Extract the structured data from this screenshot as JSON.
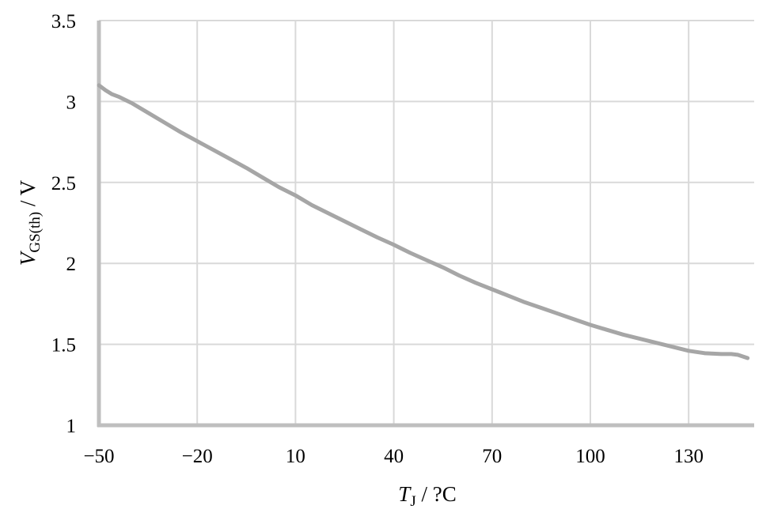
{
  "chart_data": {
    "type": "line",
    "x_axis": {
      "min": -50,
      "max": 150,
      "ticks": [
        -50,
        -20,
        10,
        40,
        70,
        100,
        130
      ],
      "tick_labels": [
        "−50",
        "−20",
        "10",
        "40",
        "70",
        "100",
        "130"
      ],
      "label_var": "T",
      "label_sub": "J",
      "label_rest": " / ?C"
    },
    "y_axis": {
      "min": 1,
      "max": 3.5,
      "ticks": [
        1,
        1.5,
        2,
        2.5,
        3,
        3.5
      ],
      "tick_labels": [
        "1",
        "1.5",
        "2",
        "2.5",
        "3",
        "3.5"
      ],
      "label_var": "V",
      "label_sub": "GS(th)",
      "label_rest": " / V"
    },
    "grid": true,
    "colors": {
      "line": "#a6a6a6",
      "grid": "#d9d9d9",
      "axis": "#bfbfbf"
    },
    "series": [
      {
        "x": [
          -50,
          -48,
          -46,
          -44,
          -40,
          -35,
          -30,
          -25,
          -20,
          -15,
          -10,
          -5,
          0,
          5,
          10,
          15,
          20,
          25,
          30,
          35,
          40,
          45,
          50,
          55,
          60,
          65,
          70,
          75,
          80,
          85,
          90,
          95,
          100,
          105,
          110,
          115,
          120,
          125,
          130,
          135,
          140,
          143,
          145,
          148
        ],
        "y": [
          3.1,
          3.07,
          3.045,
          3.03,
          2.99,
          2.93,
          2.87,
          2.81,
          2.755,
          2.7,
          2.645,
          2.59,
          2.53,
          2.47,
          2.42,
          2.36,
          2.31,
          2.26,
          2.21,
          2.16,
          2.115,
          2.065,
          2.02,
          1.975,
          1.925,
          1.88,
          1.84,
          1.8,
          1.76,
          1.725,
          1.69,
          1.655,
          1.62,
          1.59,
          1.56,
          1.535,
          1.51,
          1.485,
          1.46,
          1.445,
          1.44,
          1.44,
          1.435,
          1.415
        ]
      }
    ]
  }
}
